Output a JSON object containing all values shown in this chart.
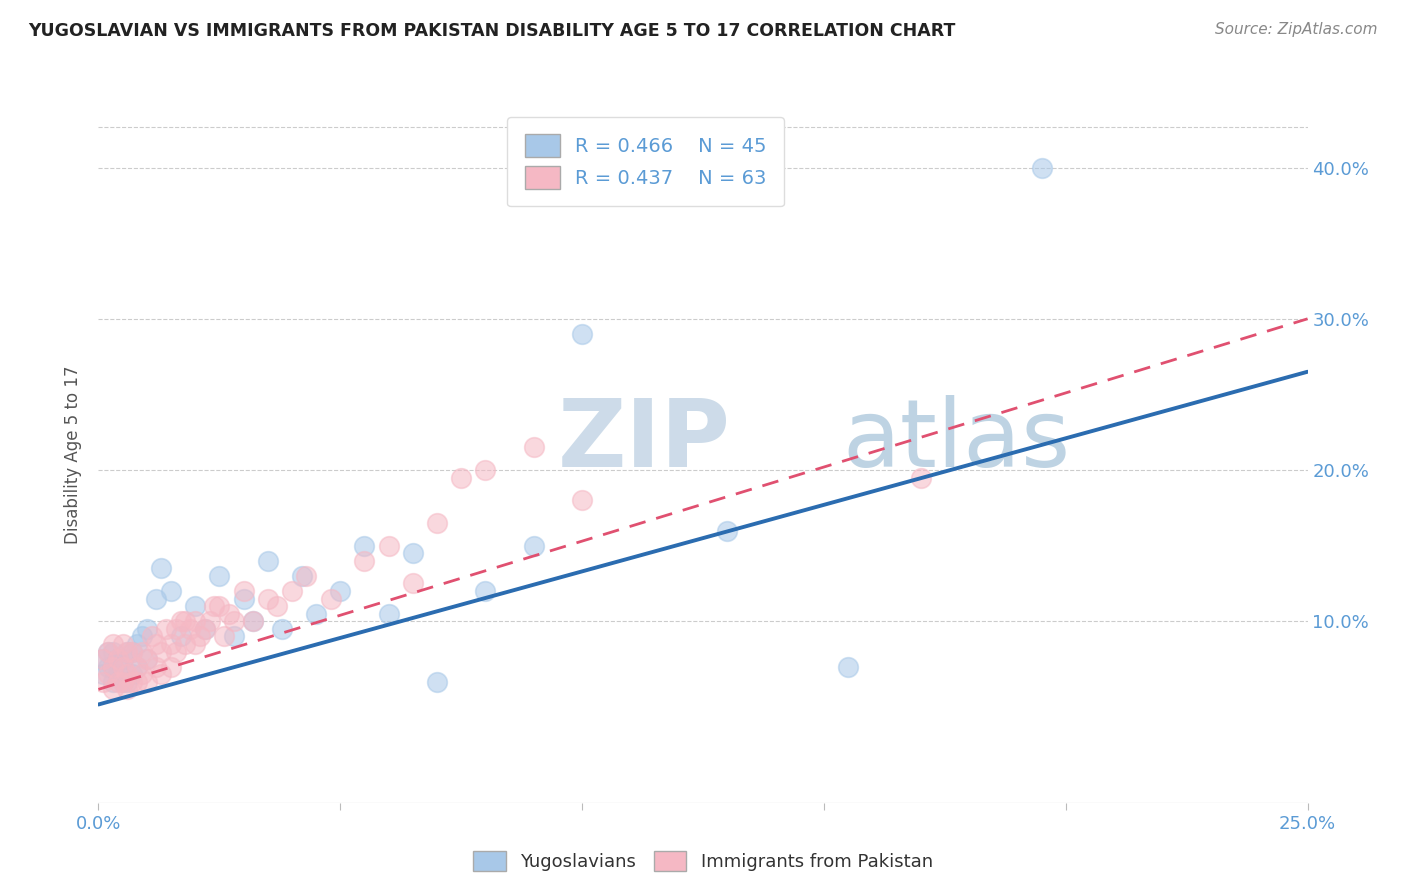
{
  "title": "YUGOSLAVIAN VS IMMIGRANTS FROM PAKISTAN DISABILITY AGE 5 TO 17 CORRELATION CHART",
  "source": "Source: ZipAtlas.com",
  "ylabel": "Disability Age 5 to 17",
  "xlim": [
    0.0,
    0.25
  ],
  "ylim": [
    -0.02,
    0.44
  ],
  "xticks": [
    0.0,
    0.05,
    0.1,
    0.15,
    0.2,
    0.25
  ],
  "xtick_labels": [
    "0.0%",
    "",
    "",
    "",
    "",
    "25.0%"
  ],
  "yticks": [
    0.0,
    0.1,
    0.2,
    0.3,
    0.4
  ],
  "ytick_labels": [
    "",
    "10.0%",
    "20.0%",
    "30.0%",
    "40.0%"
  ],
  "legend_r_blue": "R = 0.466",
  "legend_n_blue": "N = 45",
  "legend_r_pink": "R = 0.437",
  "legend_n_pink": "N = 63",
  "blue_color": "#a8c8e8",
  "pink_color": "#f5b8c4",
  "blue_line_color": "#2b6cb0",
  "pink_line_color": "#e05070",
  "title_color": "#222222",
  "axis_color": "#5b9bd5",
  "grid_color": "#cccccc",
  "watermark_color": "#cdd8ea",
  "blue_scatter_x": [
    0.001,
    0.001,
    0.002,
    0.002,
    0.003,
    0.003,
    0.003,
    0.004,
    0.004,
    0.005,
    0.005,
    0.006,
    0.006,
    0.007,
    0.007,
    0.008,
    0.008,
    0.009,
    0.01,
    0.01,
    0.012,
    0.013,
    0.015,
    0.017,
    0.02,
    0.022,
    0.025,
    0.028,
    0.03,
    0.032,
    0.035,
    0.038,
    0.042,
    0.045,
    0.05,
    0.055,
    0.06,
    0.065,
    0.07,
    0.08,
    0.09,
    0.1,
    0.13,
    0.155,
    0.195
  ],
  "blue_scatter_y": [
    0.065,
    0.075,
    0.07,
    0.08,
    0.06,
    0.07,
    0.08,
    0.065,
    0.075,
    0.06,
    0.075,
    0.06,
    0.08,
    0.065,
    0.08,
    0.07,
    0.085,
    0.09,
    0.075,
    0.095,
    0.115,
    0.135,
    0.12,
    0.09,
    0.11,
    0.095,
    0.13,
    0.09,
    0.115,
    0.1,
    0.14,
    0.095,
    0.13,
    0.105,
    0.12,
    0.15,
    0.105,
    0.145,
    0.06,
    0.12,
    0.15,
    0.29,
    0.16,
    0.07,
    0.4
  ],
  "pink_scatter_x": [
    0.001,
    0.001,
    0.002,
    0.002,
    0.003,
    0.003,
    0.003,
    0.004,
    0.004,
    0.005,
    0.005,
    0.005,
    0.006,
    0.006,
    0.006,
    0.007,
    0.007,
    0.008,
    0.008,
    0.009,
    0.009,
    0.01,
    0.01,
    0.011,
    0.012,
    0.012,
    0.013,
    0.013,
    0.014,
    0.015,
    0.015,
    0.016,
    0.016,
    0.017,
    0.018,
    0.018,
    0.019,
    0.02,
    0.02,
    0.021,
    0.022,
    0.023,
    0.024,
    0.025,
    0.026,
    0.027,
    0.028,
    0.03,
    0.032,
    0.035,
    0.037,
    0.04,
    0.043,
    0.048,
    0.055,
    0.06,
    0.065,
    0.07,
    0.075,
    0.08,
    0.09,
    0.1,
    0.17
  ],
  "pink_scatter_y": [
    0.06,
    0.075,
    0.065,
    0.08,
    0.055,
    0.07,
    0.085,
    0.06,
    0.075,
    0.06,
    0.07,
    0.085,
    0.055,
    0.065,
    0.08,
    0.06,
    0.08,
    0.06,
    0.07,
    0.065,
    0.08,
    0.06,
    0.075,
    0.09,
    0.07,
    0.085,
    0.065,
    0.08,
    0.095,
    0.07,
    0.085,
    0.08,
    0.095,
    0.1,
    0.085,
    0.1,
    0.095,
    0.085,
    0.1,
    0.09,
    0.095,
    0.1,
    0.11,
    0.11,
    0.09,
    0.105,
    0.1,
    0.12,
    0.1,
    0.115,
    0.11,
    0.12,
    0.13,
    0.115,
    0.14,
    0.15,
    0.125,
    0.165,
    0.195,
    0.2,
    0.215,
    0.18,
    0.195
  ],
  "blue_trend_x0": 0.0,
  "blue_trend_x1": 0.25,
  "blue_trend_y0": 0.045,
  "blue_trend_y1": 0.265,
  "pink_trend_x0": 0.0,
  "pink_trend_x1": 0.25,
  "pink_trend_y0": 0.055,
  "pink_trend_y1": 0.3,
  "background_color": "#ffffff"
}
